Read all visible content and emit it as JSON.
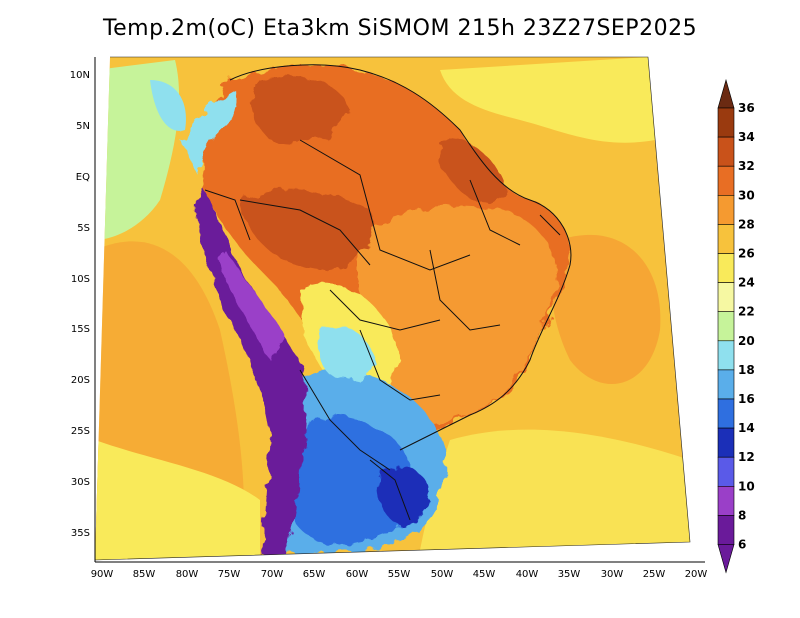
{
  "title": "Temp.2m(oC) Eta3km SiSMOM 215h 23Z27SEP2025",
  "map": {
    "lat_labels": [
      "10N",
      "5N",
      "EQ",
      "5S",
      "10S",
      "15S",
      "20S",
      "25S",
      "30S",
      "35S"
    ],
    "lon_labels": [
      "90W",
      "85W",
      "80W",
      "75W",
      "70W",
      "65W",
      "60W",
      "55W",
      "50W",
      "45W",
      "40W",
      "35W",
      "30W",
      "25W",
      "20W"
    ]
  },
  "colorbar": {
    "labels": [
      "36",
      "34",
      "32",
      "30",
      "28",
      "26",
      "24",
      "22",
      "20",
      "18",
      "16",
      "14",
      "12",
      "10",
      "8",
      "6"
    ],
    "colors": [
      "#6b2a12",
      "#9a3a0f",
      "#c9521a",
      "#e86e24",
      "#f59a30",
      "#f7c23c",
      "#f9ea5a",
      "#f6f8a2",
      "#c6f39a",
      "#8fe0ee",
      "#5aaeea",
      "#2f6fe0",
      "#1b2fb8",
      "#5a5ae8",
      "#9a3fc8",
      "#6a1a9a"
    ]
  },
  "colors": {
    "ocean_warm": "#f7c23c",
    "land_hot": "#e86e24",
    "land_cool": "#2f6fe0",
    "andes_cold": "#6a1a9a"
  }
}
